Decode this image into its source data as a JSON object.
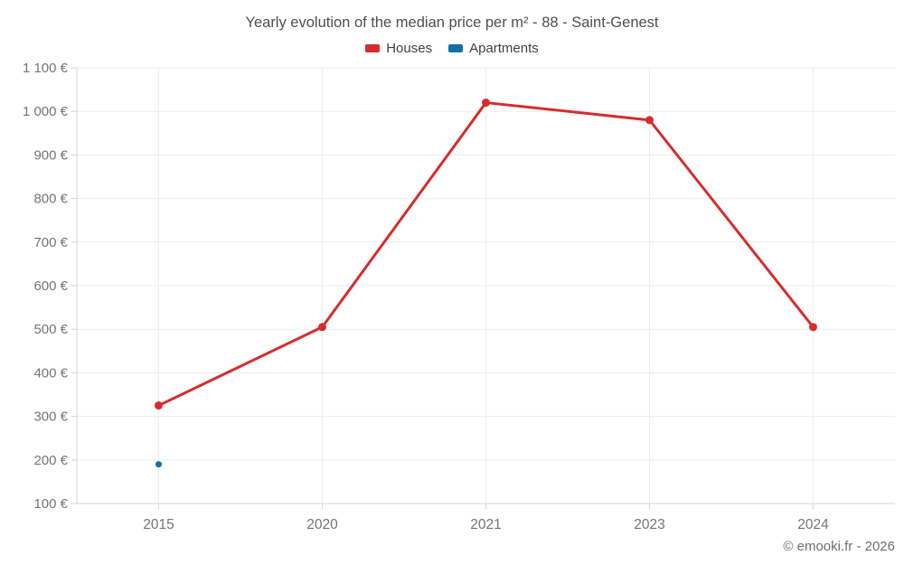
{
  "title": "Yearly evolution of the median price per m² - 88 - Saint-Genest",
  "legend": [
    {
      "label": "Houses",
      "color": "#d62c2e"
    },
    {
      "label": "Apartments",
      "color": "#1272a5"
    }
  ],
  "footer": "© emooki.fr - 2026",
  "chart_data": {
    "type": "line",
    "title": "Yearly evolution of the median price per m² - 88 - Saint-Genest",
    "categories": [
      "2015",
      "2020",
      "2021",
      "2023",
      "2024"
    ],
    "series": [
      {
        "name": "Houses",
        "color": "#d62c2e",
        "values": [
          325,
          505,
          1020,
          980,
          505
        ]
      },
      {
        "name": "Apartments",
        "color": "#1272a5",
        "values": [
          190,
          null,
          null,
          null,
          null
        ]
      }
    ],
    "xlabel": "",
    "ylabel": "",
    "ylim": [
      100,
      1100
    ],
    "y_ticks": [
      "100 €",
      "200 €",
      "300 €",
      "400 €",
      "500 €",
      "600 €",
      "700 €",
      "800 €",
      "900 €",
      "1 000 €",
      "1 100 €"
    ],
    "grid": true,
    "legend_position": "top"
  }
}
